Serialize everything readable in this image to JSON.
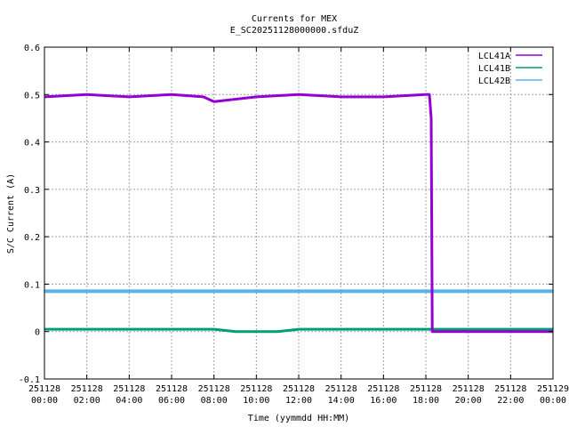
{
  "chart_data": {
    "type": "line",
    "title": "Currents for MEX",
    "subtitle": "E_SC20251128000000.sfduZ",
    "xlabel": "Time (yymmdd HH:MM)",
    "ylabel": "S/C Current (A)",
    "ylim": [
      -0.1,
      0.6
    ],
    "xlim_hours": [
      0,
      24
    ],
    "grid": true,
    "legend_position": "top-right",
    "y_ticks": [
      "-0.1",
      "0",
      "0.1",
      "0.2",
      "0.3",
      "0.4",
      "0.5",
      "0.6"
    ],
    "x_ticks": [
      {
        "date": "251128",
        "time": "00:00"
      },
      {
        "date": "251128",
        "time": "02:00"
      },
      {
        "date": "251128",
        "time": "04:00"
      },
      {
        "date": "251128",
        "time": "06:00"
      },
      {
        "date": "251128",
        "time": "08:00"
      },
      {
        "date": "251128",
        "time": "10:00"
      },
      {
        "date": "251128",
        "time": "12:00"
      },
      {
        "date": "251128",
        "time": "14:00"
      },
      {
        "date": "251128",
        "time": "16:00"
      },
      {
        "date": "251128",
        "time": "18:00"
      },
      {
        "date": "251128",
        "time": "20:00"
      },
      {
        "date": "251128",
        "time": "22:00"
      },
      {
        "date": "251129",
        "time": "00:00"
      }
    ],
    "series": [
      {
        "name": "LCL41A",
        "color": "#9400d3",
        "x": [
          "251128 00:00",
          "251128 02:00",
          "251128 04:00",
          "251128 06:00",
          "251128 07:30",
          "251128 08:00",
          "251128 10:00",
          "251128 12:00",
          "251128 14:00",
          "251128 16:00",
          "251128 18:00",
          "251128 18:10",
          "251128 18:15",
          "251128 18:18",
          "251128 20:00",
          "251128 22:00",
          "251129 00:00"
        ],
        "values": [
          0.495,
          0.5,
          0.495,
          0.5,
          0.495,
          0.485,
          0.495,
          0.5,
          0.495,
          0.495,
          0.5,
          0.5,
          0.45,
          0.0,
          0.0,
          0.0,
          0.0
        ]
      },
      {
        "name": "LCL41B",
        "color": "#009e73",
        "x": [
          "251128 00:00",
          "251128 06:00",
          "251128 08:00",
          "251128 09:00",
          "251128 10:00",
          "251128 11:00",
          "251128 12:00",
          "251128 18:00",
          "251128 24:00"
        ],
        "values": [
          0.005,
          0.005,
          0.005,
          0.0,
          0.0,
          0.0,
          0.005,
          0.005,
          0.005
        ]
      },
      {
        "name": "LCL42B",
        "color": "#56b4e9",
        "x": [
          "251128 00:00",
          "251128 06:00",
          "251128 12:00",
          "251128 18:00",
          "251128 18:12",
          "251128 19:30",
          "251129 00:00"
        ],
        "values": [
          0.085,
          0.085,
          0.085,
          0.085,
          0.085,
          0.085,
          0.085
        ]
      }
    ]
  }
}
